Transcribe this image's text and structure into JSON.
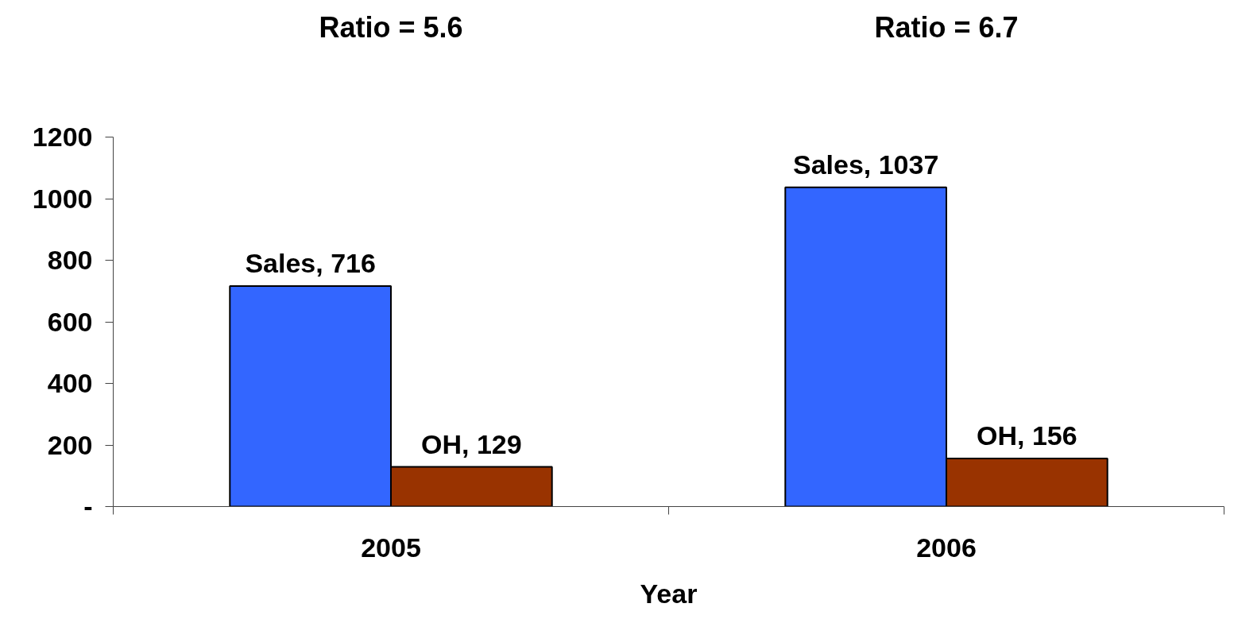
{
  "chart_data": {
    "type": "bar",
    "categories": [
      "2005",
      "2006"
    ],
    "xlabel": "Year",
    "series": [
      {
        "color": "#3366ff",
        "values": [
          716,
          1037
        ],
        "value_labels": [
          "Sales, 716",
          "Sales, 1037"
        ]
      },
      {
        "color": "#993300",
        "values": [
          129,
          156
        ],
        "value_labels": [
          "OH, 129",
          "OH, 156"
        ]
      }
    ],
    "ylim": [
      0,
      1200
    ],
    "yticks": [
      {
        "value": 0,
        "label": "-"
      },
      200,
      400,
      600,
      800,
      1000,
      1200
    ],
    "annotations": [
      "Ratio = 5.6",
      "Ratio = 6.7"
    ]
  }
}
